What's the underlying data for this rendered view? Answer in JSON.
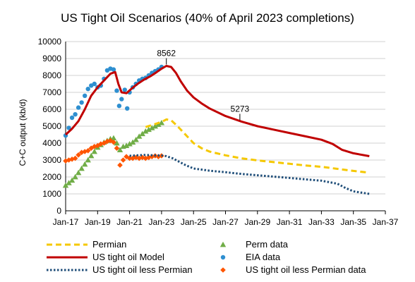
{
  "chart_data": {
    "type": "line",
    "title": "US Tight Oil Scenarios (40% of April 2023 completions)",
    "ylabel": "C+C output (kb/d)",
    "xlabel": "",
    "ylim": [
      0,
      10000
    ],
    "yticks": [
      0,
      1000,
      2000,
      3000,
      4000,
      5000,
      6000,
      7000,
      8000,
      9000,
      10000
    ],
    "xlim": [
      2017,
      2037
    ],
    "xticks": [
      {
        "value": 2017,
        "label": "Jan-17"
      },
      {
        "value": 2019,
        "label": "Jan-19"
      },
      {
        "value": 2021,
        "label": "Jan-21"
      },
      {
        "value": 2023,
        "label": "Jan-23"
      },
      {
        "value": 2025,
        "label": "Jan-25"
      },
      {
        "value": 2027,
        "label": "Jan-27"
      },
      {
        "value": 2029,
        "label": "Jan-29"
      },
      {
        "value": 2031,
        "label": "Jan-31"
      },
      {
        "value": 2033,
        "label": "Jan-33"
      },
      {
        "value": 2035,
        "label": "Jan-35"
      },
      {
        "value": 2037,
        "label": "Jan-37"
      }
    ],
    "grid": "horizontal",
    "legend_position": "bottom",
    "colors": {
      "permian": "#f5c800",
      "model": "#c00000",
      "less_permian": "#1f4e79",
      "perm_data": "#70ad47",
      "eia": "#2e8fd0",
      "less_permian_data": "#ff5500"
    },
    "annotations": [
      {
        "text": "8562",
        "x": 2023.3,
        "y": 8562
      },
      {
        "text": "5273",
        "x": 2027.9,
        "y": 5273
      }
    ],
    "series": [
      {
        "name": "Permian",
        "style": "dashed-line",
        "x": [
          2022.0,
          2022.5,
          2023.0,
          2023.3,
          2023.6,
          2024.0,
          2024.5,
          2025.0,
          2025.5,
          2026.0,
          2027.0,
          2028.0,
          2029.0,
          2030.0,
          2031.0,
          2032.0,
          2033.0,
          2034.0,
          2035.0,
          2036.0
        ],
        "values": [
          4950,
          5100,
          5250,
          5400,
          5350,
          5000,
          4500,
          4000,
          3700,
          3500,
          3280,
          3100,
          2980,
          2880,
          2780,
          2680,
          2600,
          2480,
          2360,
          2250
        ]
      },
      {
        "name": "US tight oil Model",
        "style": "solid-line",
        "x": [
          2017.0,
          2017.4,
          2017.8,
          2018.2,
          2018.6,
          2019.0,
          2019.4,
          2019.8,
          2020.1,
          2020.3,
          2020.5,
          2020.8,
          2021.1,
          2021.5,
          2021.9,
          2022.3,
          2022.7,
          2023.0,
          2023.3,
          2023.6,
          2023.9,
          2024.2,
          2024.6,
          2025.0,
          2025.5,
          2026.0,
          2027.0,
          2028.0,
          2029.0,
          2030.0,
          2031.0,
          2032.0,
          2033.0,
          2033.7,
          2034.3,
          2035.0,
          2036.0
        ],
        "values": [
          4500,
          4850,
          5300,
          6000,
          6800,
          7300,
          7700,
          8100,
          8200,
          7500,
          7000,
          6950,
          7200,
          7500,
          7750,
          7950,
          8200,
          8400,
          8562,
          8500,
          8150,
          7650,
          7100,
          6700,
          6350,
          6050,
          5600,
          5273,
          5000,
          4800,
          4600,
          4400,
          4200,
          3950,
          3600,
          3400,
          3230
        ]
      },
      {
        "name": "US tight oil less Permian",
        "style": "dotted-line",
        "x": [
          2021.0,
          2021.5,
          2022.0,
          2022.5,
          2023.0,
          2023.3,
          2023.7,
          2024.0,
          2024.5,
          2025.0,
          2026.0,
          2027.0,
          2028.0,
          2029.0,
          2030.0,
          2031.0,
          2032.0,
          2033.0,
          2034.0,
          2034.5,
          2035.0,
          2036.0
        ],
        "values": [
          3250,
          3280,
          3300,
          3280,
          3270,
          3230,
          3100,
          2950,
          2700,
          2500,
          2370,
          2280,
          2180,
          2100,
          2020,
          1940,
          1860,
          1780,
          1600,
          1350,
          1150,
          1000
        ]
      },
      {
        "name": "Perm data",
        "style": "triangle-markers",
        "x": [
          2017.0,
          2017.2,
          2017.4,
          2017.6,
          2017.8,
          2018.0,
          2018.2,
          2018.4,
          2018.6,
          2018.8,
          2019.0,
          2019.2,
          2019.4,
          2019.6,
          2019.8,
          2020.0,
          2020.2,
          2020.4,
          2020.6,
          2020.8,
          2021.0,
          2021.2,
          2021.4,
          2021.6,
          2021.8,
          2022.0,
          2022.2,
          2022.4,
          2022.6,
          2022.8,
          2023.0
        ],
        "values": [
          1500,
          1650,
          1800,
          2000,
          2250,
          2500,
          2750,
          3000,
          3250,
          3500,
          3750,
          3900,
          4050,
          4150,
          4250,
          4300,
          4000,
          3600,
          3800,
          3850,
          3950,
          4050,
          4200,
          4400,
          4550,
          4700,
          4800,
          4900,
          5000,
          5100,
          5200
        ]
      },
      {
        "name": "EIA data",
        "style": "circle-markers",
        "x": [
          2017.0,
          2017.2,
          2017.4,
          2017.6,
          2017.8,
          2018.0,
          2018.2,
          2018.4,
          2018.6,
          2018.8,
          2019.0,
          2019.2,
          2019.4,
          2019.6,
          2019.8,
          2020.0,
          2020.2,
          2020.35,
          2020.5,
          2020.7,
          2020.85,
          2021.0,
          2021.2,
          2021.4,
          2021.6,
          2021.8,
          2022.0,
          2022.2,
          2022.4,
          2022.6,
          2022.8,
          2023.0
        ],
        "values": [
          4450,
          4900,
          5500,
          5700,
          6100,
          6400,
          6800,
          7200,
          7400,
          7500,
          7300,
          7400,
          7800,
          8300,
          8400,
          8350,
          7100,
          6200,
          6600,
          7150,
          6050,
          7000,
          7300,
          7500,
          7700,
          7800,
          7850,
          8000,
          8150,
          8250,
          8350,
          8500
        ]
      },
      {
        "name": "US tight oil less Permian data",
        "style": "diamond-markers",
        "x": [
          2017.0,
          2017.2,
          2017.4,
          2017.6,
          2017.8,
          2018.0,
          2018.2,
          2018.4,
          2018.6,
          2018.8,
          2019.0,
          2019.2,
          2019.4,
          2019.6,
          2019.8,
          2020.0,
          2020.2,
          2020.4,
          2020.6,
          2020.8,
          2021.0,
          2021.2,
          2021.4,
          2021.6,
          2021.8,
          2022.0,
          2022.2,
          2022.4,
          2022.6,
          2022.8,
          2023.0
        ],
        "values": [
          2950,
          3000,
          3050,
          3100,
          3300,
          3450,
          3500,
          3550,
          3700,
          3800,
          3850,
          3950,
          4000,
          4100,
          4150,
          4050,
          3700,
          2700,
          3000,
          3200,
          3100,
          3100,
          3150,
          3100,
          3150,
          3100,
          3150,
          3200,
          3250,
          3200,
          3250
        ]
      }
    ]
  }
}
